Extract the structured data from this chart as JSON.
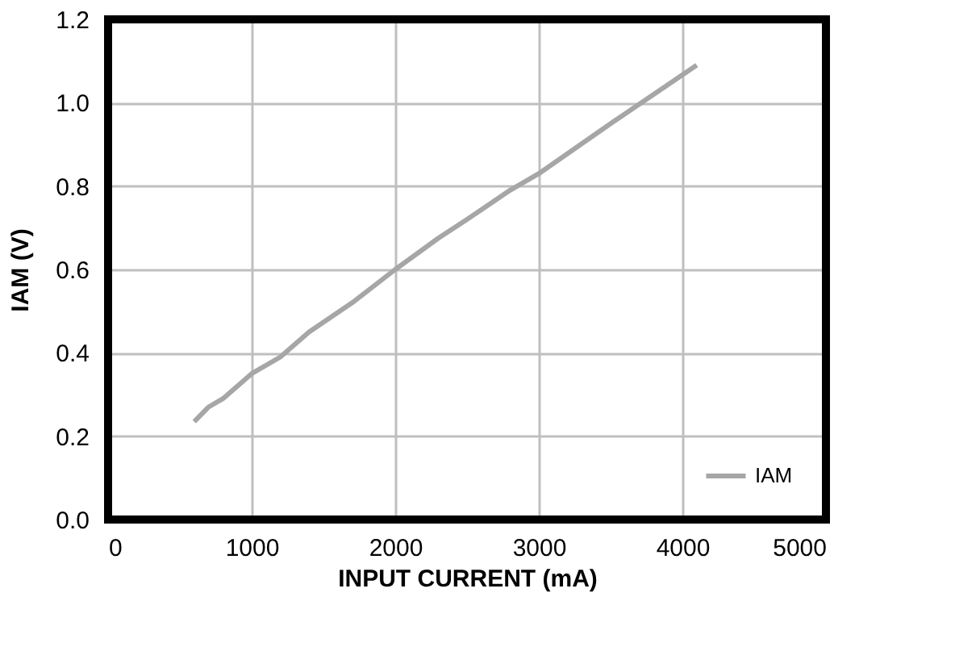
{
  "chart_data": {
    "type": "line",
    "xlabel": "INPUT CURRENT    (mA)",
    "ylabel": "IAM (V)",
    "series": [
      {
        "name": "IAM",
        "color": "#a6a6a6",
        "x": [
          600,
          700,
          800,
          1000,
          1200,
          1400,
          1700,
          2000,
          2300,
          2500,
          2800,
          3000,
          3500,
          4100
        ],
        "values": [
          0.235,
          0.27,
          0.29,
          0.35,
          0.39,
          0.45,
          0.52,
          0.6,
          0.675,
          0.72,
          0.79,
          0.83,
          0.95,
          1.09
        ]
      }
    ],
    "xlim": [
      0,
      5000
    ],
    "xticks": [
      0,
      1000,
      2000,
      3000,
      4000,
      5000
    ],
    "ylim": [
      0,
      1.2
    ],
    "yticks": [
      {
        "value": 0,
        "label": "0.0"
      },
      {
        "value": 0.2,
        "label": "0.2"
      },
      {
        "value": 0.4,
        "label": "0.4"
      },
      {
        "value": 0.6,
        "label": "0.6"
      },
      {
        "value": 0.8,
        "label": "0.8"
      },
      {
        "value": 1.0,
        "label": "1.0"
      },
      {
        "value": 1.2,
        "label": "1.2"
      }
    ],
    "grid": true,
    "legend": "bottom right",
    "marker": "none",
    "line_style": "solid"
  }
}
